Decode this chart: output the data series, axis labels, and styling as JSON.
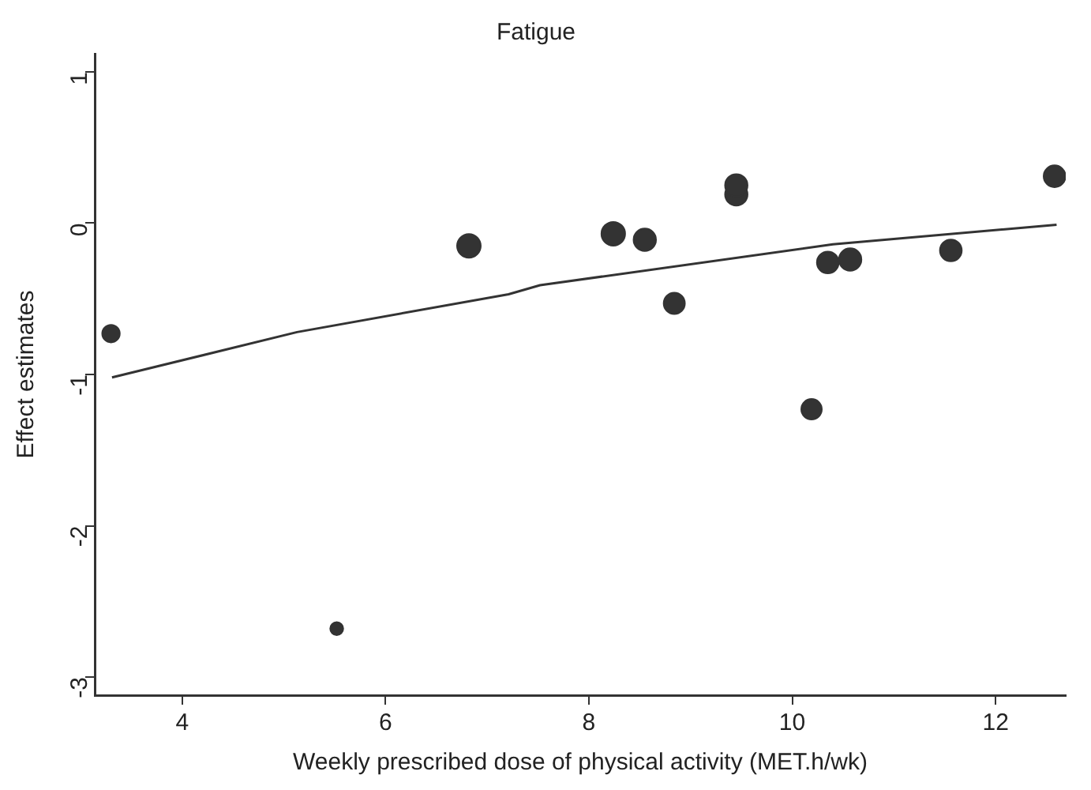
{
  "chart_data": {
    "type": "bubble",
    "title": "Fatigue",
    "xlabel": "Weekly prescribed dose of physical activity (MET.h/wk)",
    "ylabel": "Effect estimates",
    "xlim": [
      3.14,
      12.69
    ],
    "xticks": [
      4,
      6,
      8,
      10,
      12
    ],
    "ylim": [
      -3.12,
      1.12
    ],
    "yticks": [
      1,
      0,
      -1,
      -2,
      -3
    ],
    "grid": false,
    "legend": false,
    "series": [
      {
        "color": "#333333",
        "x": [
          3.3,
          5.52,
          6.82,
          8.24,
          8.55,
          8.84,
          9.45,
          9.45,
          10.19,
          10.35,
          10.57,
          11.56,
          12.58
        ],
        "values": [
          -0.73,
          -2.68,
          -0.15,
          -0.07,
          -0.11,
          -0.53,
          0.19,
          0.25,
          -1.23,
          -0.26,
          -0.24,
          -0.18,
          0.31
        ],
        "sizes": [
          0.55,
          0.3,
          1,
          1,
          0.9,
          0.8,
          0.9,
          0.9,
          0.75,
          0.85,
          0.9,
          0.85,
          0.85
        ]
      },
      {
        "type": "line",
        "color": "#333333",
        "x": [
          3.31,
          5.13,
          7.21,
          7.52,
          10.4,
          12.6
        ],
        "values": [
          -1.02,
          -0.72,
          -0.47,
          -0.41,
          -0.14,
          -0.01
        ]
      }
    ]
  }
}
